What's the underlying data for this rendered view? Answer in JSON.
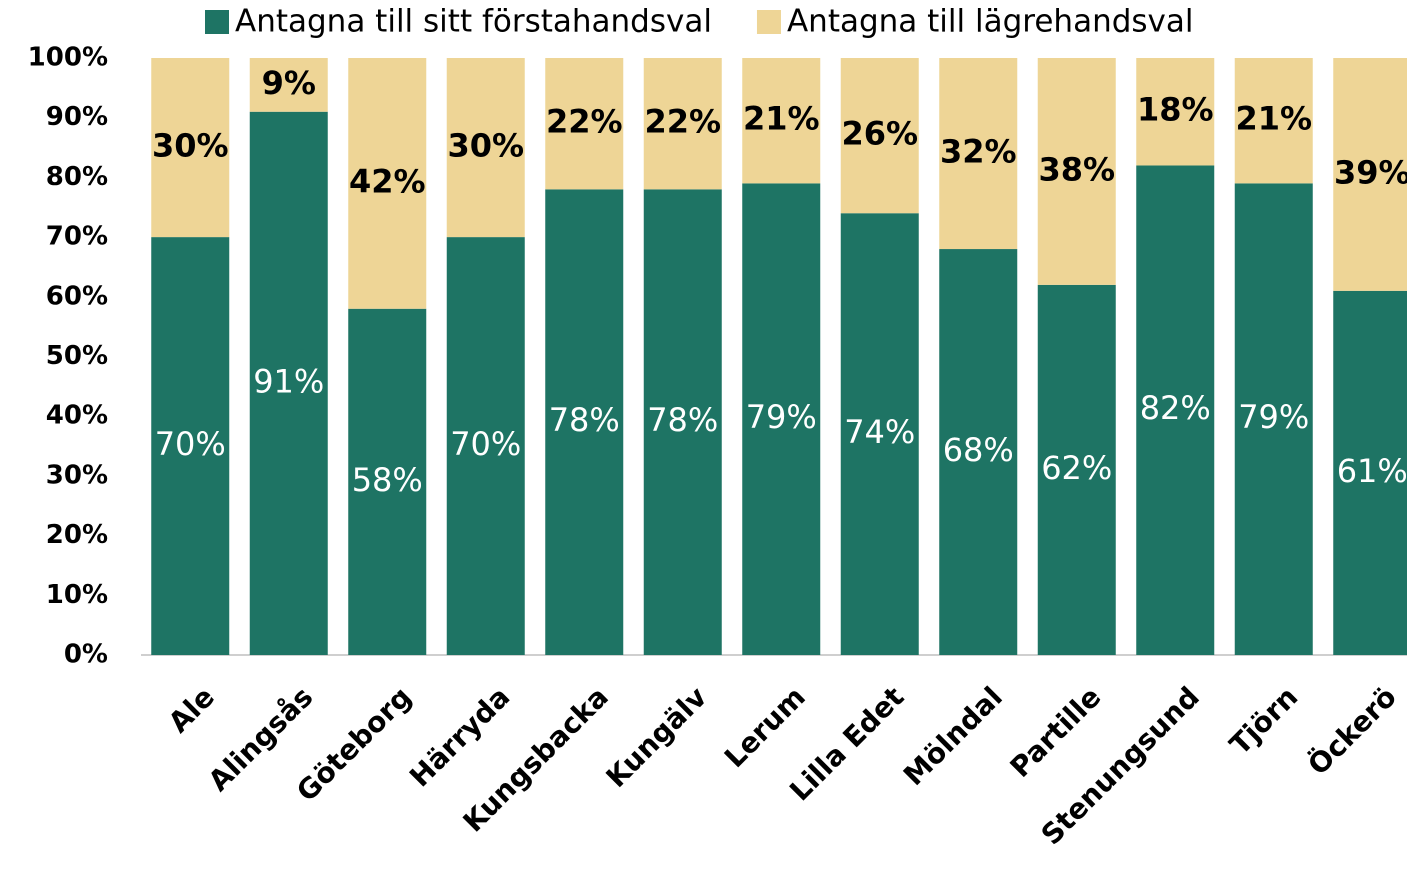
{
  "chart_data": {
    "type": "stacked_bar",
    "categories": [
      "Ale",
      "Alingsås",
      "Göteborg",
      "Härryda",
      "Kungsbacka",
      "Kungälv",
      "Lerum",
      "Lilla Edet",
      "Mölndal",
      "Partille",
      "Stenungsund",
      "Tjörn",
      "Öckerö"
    ],
    "series": [
      {
        "name": "Antagna till sitt förstahandsval",
        "color": "#1e7464",
        "values": [
          70,
          91,
          58,
          70,
          78,
          78,
          79,
          74,
          68,
          62,
          82,
          79,
          61
        ],
        "value_labels": [
          "70%",
          "91%",
          "58%",
          "70%",
          "78%",
          "78%",
          "79%",
          "74%",
          "68%",
          "62%",
          "82%",
          "79%",
          "61%"
        ]
      },
      {
        "name": "Antagna till lägrehandsval",
        "color": "#eed596",
        "values": [
          30,
          9,
          42,
          30,
          22,
          22,
          21,
          26,
          32,
          38,
          18,
          21,
          39
        ],
        "value_labels": [
          "30%",
          "9%",
          "42%",
          "30%",
          "22%",
          "22%",
          "21%",
          "26%",
          "32%",
          "38%",
          "18%",
          "21%",
          "39%"
        ]
      }
    ],
    "ylim": [
      0,
      100
    ],
    "yticks": [
      {
        "value": 0,
        "label": "0%"
      },
      {
        "value": 10,
        "label": "10%"
      },
      {
        "value": 20,
        "label": "20%"
      },
      {
        "value": 30,
        "label": "30%"
      },
      {
        "value": 40,
        "label": "40%"
      },
      {
        "value": 50,
        "label": "50%"
      },
      {
        "value": 60,
        "label": "60%"
      },
      {
        "value": 70,
        "label": "70%"
      },
      {
        "value": 80,
        "label": "80%"
      },
      {
        "value": 90,
        "label": "90%"
      },
      {
        "value": 100,
        "label": "100%"
      }
    ],
    "legend": "top"
  }
}
